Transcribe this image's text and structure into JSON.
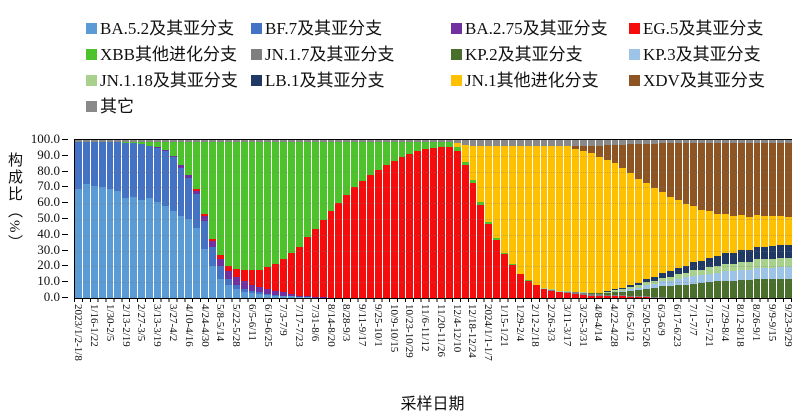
{
  "page": {
    "background": "#ffffff"
  },
  "chart_data": {
    "type": "bar",
    "stacked": true,
    "orientation": "vertical",
    "title": "",
    "xlabel": "采样日期",
    "ylabel": "构成比（%）",
    "unit": "%",
    "ylim": [
      0,
      100
    ],
    "ytick_step": 10,
    "ytick_labels": [
      "100.0",
      "90.0",
      "80.0",
      "70.0",
      "60.0",
      "50.0",
      "40.0",
      "30.0",
      "20.0",
      "10.0",
      "0.0"
    ],
    "grid": "horizontal-dotted",
    "legend_position": "top",
    "n_bars": 91,
    "bars_per_label": 2,
    "x_labels": [
      "2023/1/2-1/8",
      "1/16-1/22",
      "1/30-2/5",
      "2/13-2/19",
      "2/27-3/5",
      "3/13-3/19",
      "3/27-4/2",
      "4/10-4/16",
      "4/24-4/30",
      "5/8-5/14",
      "5/22-5/28",
      "6/5-6/11",
      "6/19-6/25",
      "7/3-7/9",
      "7/17-7/23",
      "7/31-8/6",
      "8/14-8/20",
      "8/28-9/3",
      "9/11-9/17",
      "9/25-10/1",
      "10/9-10/15",
      "10/23-10/29",
      "11/6-11/12",
      "11/20-11/26",
      "12/4-12/10",
      "12/18-12/24",
      "2024/1/1-1/7",
      "1/15-1/21",
      "1/29-2/4",
      "2/12-2/18",
      "2/26-3/3",
      "3/11-3/17",
      "3/25-3/31",
      "4/8-4/14",
      "4/22-4/28",
      "5/6-5/12",
      "5/20-5/26",
      "6/3-6/9",
      "6/17-6/23",
      "7/1-7/7",
      "7/15-7/21",
      "7/29-8/4",
      "8/12-8/18",
      "8/26-9/1",
      "9/9-9/15",
      "9/23-9/29"
    ],
    "series": [
      {
        "name": "BA.5.2及其亚分支",
        "color": "#5B9BD5",
        "values": [
          69,
          72,
          71,
          70,
          69,
          68,
          63,
          64,
          62,
          63,
          61,
          58,
          55,
          52,
          50,
          44,
          31,
          20,
          12,
          8,
          6,
          4,
          3,
          2.5,
          2,
          1.5,
          1,
          1,
          0.5,
          0.5,
          0,
          0,
          0,
          0,
          0,
          0,
          0,
          0,
          0,
          0,
          0,
          0,
          0,
          0,
          0,
          0,
          0,
          0,
          0,
          0,
          0,
          0,
          0,
          0,
          0,
          0,
          0,
          0,
          0,
          0,
          0,
          0,
          0,
          0,
          0,
          0,
          0,
          0,
          0,
          0,
          0,
          0,
          0,
          0,
          0,
          0,
          0,
          0,
          0,
          0,
          0,
          0,
          0,
          0,
          0,
          0,
          0,
          0,
          0,
          0,
          0
        ]
      },
      {
        "name": "BF.7及其亚分支",
        "color": "#4472C4",
        "values": [
          30,
          27,
          28,
          29,
          30,
          31,
          35,
          34,
          35.5,
          33.5,
          34,
          35,
          34,
          30,
          26,
          22,
          18,
          12,
          8,
          4,
          2.5,
          2,
          1.5,
          1,
          0.5,
          0.5,
          0.5,
          0,
          0,
          0,
          0,
          0,
          0,
          0,
          0,
          0,
          0,
          0,
          0,
          0,
          0,
          0,
          0,
          0,
          0,
          0,
          0,
          0,
          0,
          0,
          0,
          0,
          0,
          0,
          0,
          0,
          0,
          0,
          0,
          0,
          0,
          0,
          0,
          0,
          0,
          0,
          0,
          0,
          0,
          0,
          0,
          0,
          0,
          0,
          0,
          0,
          0,
          0,
          0,
          0,
          0,
          0,
          0,
          0,
          0,
          0,
          0,
          0,
          0,
          0,
          0
        ]
      },
      {
        "name": "BA.2.75及其亚分支",
        "color": "#7030A0",
        "values": [
          0,
          0,
          0,
          0,
          0,
          0,
          0,
          0,
          0,
          0,
          0.5,
          1,
          1,
          2,
          2,
          2,
          3,
          4,
          5,
          5,
          5,
          4.5,
          4,
          3.5,
          3,
          2.5,
          2,
          1.5,
          1,
          1,
          0.5,
          0.5,
          0,
          0,
          0,
          0,
          0,
          0,
          0,
          0,
          0,
          0,
          0,
          0,
          0,
          0,
          0,
          0,
          0,
          0,
          0,
          0,
          0,
          0,
          0,
          0,
          0,
          0,
          0,
          0,
          0,
          0,
          0,
          0,
          0,
          0,
          0,
          0,
          0,
          0,
          0,
          0,
          0,
          0,
          0,
          0,
          0,
          0,
          0,
          0,
          0,
          0,
          0,
          0,
          0,
          0,
          0,
          0,
          0,
          0,
          0
        ]
      },
      {
        "name": "EG.5及其亚分支",
        "color": "#F50D0D",
        "values": [
          0,
          0,
          0,
          0,
          0,
          0,
          0,
          0,
          0,
          0,
          0,
          0,
          0,
          0,
          0,
          1,
          1,
          1.5,
          2,
          3,
          5,
          7,
          9,
          11,
          14,
          17,
          21,
          26,
          31,
          37,
          43,
          49,
          55,
          60,
          65,
          70,
          74,
          78,
          81,
          84,
          87,
          89,
          91,
          93,
          94,
          95,
          95.5,
          95.5,
          93,
          84,
          73,
          59,
          47,
          37,
          28,
          21,
          15,
          11,
          8,
          6,
          4.5,
          3.5,
          3,
          2.5,
          2,
          1.5,
          1.5,
          1,
          1,
          1,
          0.5,
          0.5,
          0.5,
          0,
          0,
          0,
          0,
          0,
          0,
          0,
          0,
          0,
          0,
          0,
          0,
          0,
          0,
          0,
          0,
          0,
          0
        ]
      },
      {
        "name": "XBB其他进化分支",
        "color": "#4DC32B",
        "values": [
          0,
          0,
          0,
          0,
          0,
          0,
          1,
          1,
          1.5,
          2.5,
          3.5,
          5,
          9,
          15,
          21,
          30,
          46,
          61.5,
          72,
          79,
          80.5,
          81.5,
          81.5,
          81,
          79.5,
          77.5,
          74.5,
          70.5,
          66.5,
          60.5,
          55.5,
          49.5,
          44,
          39,
          34,
          29,
          25,
          21,
          18,
          15,
          12,
          10,
          8,
          6,
          5,
          4,
          3.5,
          3,
          2.5,
          2,
          1.5,
          1.5,
          1,
          1,
          0.5,
          0.5,
          0.5,
          0.5,
          0,
          0,
          0,
          0,
          0,
          0,
          0,
          0,
          0,
          0,
          0,
          0,
          0,
          0,
          0,
          0,
          0,
          0,
          0,
          0,
          0,
          0,
          0,
          0,
          0,
          0,
          0,
          0,
          0,
          0,
          0,
          0,
          0
        ]
      },
      {
        "name": "JN.1.7及其亚分支",
        "color": "#7F7F7F",
        "values": [
          0,
          0,
          0,
          0,
          0,
          0,
          0,
          0,
          0,
          0,
          0,
          0,
          0,
          0,
          0,
          0,
          0,
          0,
          0,
          0,
          0,
          0,
          0,
          0,
          0,
          0,
          0,
          0,
          0,
          0,
          0,
          0,
          0,
          0,
          0,
          0,
          0,
          0,
          0,
          0,
          0,
          0,
          0,
          0,
          0,
          0,
          0,
          0,
          0,
          0,
          0,
          0,
          0,
          0,
          0,
          0,
          0,
          0,
          0,
          0,
          0.5,
          0.5,
          1,
          1,
          1,
          1,
          1,
          1,
          1,
          1,
          1,
          0.5,
          0.5,
          0.5,
          0.5,
          0,
          0,
          0,
          0,
          0,
          0,
          0,
          0,
          0,
          0,
          0,
          0,
          0,
          0,
          0,
          0
        ]
      },
      {
        "name": "KP.2及其亚分支",
        "color": "#4A6F2C",
        "values": [
          0,
          0,
          0,
          0,
          0,
          0,
          0,
          0,
          0,
          0,
          0,
          0,
          0,
          0,
          0,
          0,
          0,
          0,
          0,
          0,
          0,
          0,
          0,
          0,
          0,
          0,
          0,
          0,
          0,
          0,
          0,
          0,
          0,
          0,
          0,
          0,
          0,
          0,
          0,
          0,
          0,
          0,
          0,
          0,
          0,
          0,
          0,
          0,
          0,
          0,
          0,
          0,
          0,
          0,
          0,
          0,
          0,
          0,
          0,
          0,
          0,
          0,
          0,
          0,
          0,
          0.5,
          0.5,
          1,
          1.5,
          2,
          3,
          4,
          5,
          6,
          7,
          7.5,
          8,
          8.5,
          9,
          9.5,
          10,
          10.5,
          11,
          11,
          11.5,
          11.5,
          12,
          12,
          12,
          12,
          12
        ]
      },
      {
        "name": "KP.3及其亚分支",
        "color": "#9DC3E6",
        "values": [
          0,
          0,
          0,
          0,
          0,
          0,
          0,
          0,
          0,
          0,
          0,
          0,
          0,
          0,
          0,
          0,
          0,
          0,
          0,
          0,
          0,
          0,
          0,
          0,
          0,
          0,
          0,
          0,
          0,
          0,
          0,
          0,
          0,
          0,
          0,
          0,
          0,
          0,
          0,
          0,
          0,
          0,
          0,
          0,
          0,
          0,
          0,
          0,
          0,
          0,
          0,
          0,
          0,
          0,
          0,
          0,
          0,
          0,
          0,
          0,
          0,
          0,
          0,
          0,
          0,
          0,
          0,
          0,
          0.5,
          0.5,
          1,
          1.5,
          2,
          2.5,
          3,
          3.5,
          4,
          4.5,
          5,
          5,
          5.5,
          5.5,
          6,
          6,
          6.5,
          6.5,
          7,
          7,
          7,
          7.5,
          7.5
        ]
      },
      {
        "name": "JN.1.18及其亚分支",
        "color": "#A9D18E",
        "values": [
          0,
          0,
          0,
          0,
          0,
          0,
          0,
          0,
          0,
          0,
          0,
          0,
          0,
          0,
          0,
          0,
          0,
          0,
          0,
          0,
          0,
          0,
          0,
          0,
          0,
          0,
          0,
          0,
          0,
          0,
          0,
          0,
          0,
          0,
          0,
          0,
          0,
          0,
          0,
          0,
          0,
          0,
          0,
          0,
          0,
          0,
          0,
          0,
          0,
          0,
          0,
          0,
          0,
          0,
          0,
          0,
          0,
          0,
          0.5,
          0.5,
          0.5,
          0.5,
          0.5,
          0.5,
          0.5,
          0.5,
          0.5,
          1,
          1,
          1,
          1.5,
          1.5,
          2,
          2,
          2.5,
          2.5,
          3,
          3,
          3.5,
          3.5,
          4,
          4,
          4.5,
          4.5,
          5,
          5,
          5.5,
          5.5,
          6,
          6,
          6
        ]
      },
      {
        "name": "LB.1及其亚分支",
        "color": "#1F3864",
        "values": [
          0,
          0,
          0,
          0,
          0,
          0,
          0,
          0,
          0,
          0,
          0,
          0,
          0,
          0,
          0,
          0,
          0,
          0,
          0,
          0,
          0,
          0,
          0,
          0,
          0,
          0,
          0,
          0,
          0,
          0,
          0,
          0,
          0,
          0,
          0,
          0,
          0,
          0,
          0,
          0,
          0,
          0,
          0,
          0,
          0,
          0,
          0,
          0,
          0,
          0,
          0,
          0,
          0,
          0,
          0,
          0,
          0,
          0,
          0,
          0,
          0,
          0,
          0,
          0,
          0,
          0,
          0,
          0.5,
          0.5,
          1,
          1,
          1.5,
          2,
          2.5,
          3,
          3.5,
          4,
          4.5,
          5,
          5.5,
          6,
          6.5,
          7,
          7,
          7.5,
          7.5,
          8,
          8,
          8,
          8,
          8
        ]
      },
      {
        "name": "JN.1其他进化分支",
        "color": "#FFC000",
        "values": [
          0,
          0,
          0,
          0,
          0,
          0,
          0,
          0,
          0,
          0,
          0,
          0,
          0,
          0,
          0,
          0,
          0,
          0,
          0,
          0,
          0,
          0,
          0,
          0,
          0,
          0,
          0,
          0,
          0,
          0,
          0,
          0,
          0,
          0,
          0,
          0,
          0,
          0,
          0,
          0,
          0,
          0,
          0,
          0,
          0,
          0,
          0,
          0,
          2.5,
          11,
          22,
          35.5,
          48,
          58,
          67.5,
          74.5,
          80.5,
          84.5,
          87.5,
          89.5,
          90.5,
          91.5,
          91.5,
          90.5,
          89.5,
          88,
          86,
          83,
          80,
          75.5,
          71,
          66,
          61,
          56,
          51,
          47,
          43,
          39,
          35.5,
          32.5,
          29.5,
          27,
          25,
          23.5,
          22,
          21,
          20,
          19.5,
          19,
          18.5,
          18
        ]
      },
      {
        "name": "XDV及其亚分支",
        "color": "#8E5524",
        "values": [
          0,
          0,
          0,
          0,
          0,
          0,
          0,
          0,
          0,
          0,
          0,
          0,
          0,
          0,
          0,
          0,
          0,
          0,
          0,
          0,
          0,
          0,
          0,
          0,
          0,
          0,
          0,
          0,
          0,
          0,
          0,
          0,
          0,
          0,
          0,
          0,
          0,
          0,
          0,
          0,
          0,
          0,
          0,
          0,
          0,
          0,
          0,
          0,
          0,
          0,
          0,
          0,
          0,
          0,
          0,
          0,
          0,
          0,
          0,
          0,
          0,
          0,
          0,
          1.5,
          3,
          4.5,
          7,
          9.5,
          11.5,
          15,
          18.5,
          22,
          24.5,
          28,
          31,
          34,
          36,
          38.5,
          40,
          42,
          43,
          44.5,
          44.5,
          46,
          45.5,
          46.5,
          45.5,
          46,
          46,
          46,
          46.5
        ]
      },
      {
        "name": "其它",
        "color": "#898989",
        "values": [
          1,
          1,
          1,
          1,
          1,
          1,
          1,
          1,
          1,
          1,
          1,
          1,
          1,
          1,
          1,
          1,
          1,
          1,
          1,
          1,
          1,
          1,
          1,
          1,
          1,
          1,
          1,
          1,
          1,
          1,
          1,
          1,
          1,
          1,
          1,
          1,
          1,
          1,
          1,
          1,
          1,
          1,
          1,
          1,
          1,
          1,
          1,
          1.5,
          2,
          3,
          3.5,
          4,
          4,
          4,
          4,
          4,
          4,
          4,
          4,
          4,
          4,
          4,
          4,
          4,
          4,
          4,
          3.5,
          3,
          3,
          3,
          2.5,
          2.5,
          2.5,
          2.5,
          2,
          2,
          2,
          2,
          2,
          2,
          2,
          2,
          2,
          2,
          2,
          2,
          2,
          2,
          2,
          2,
          2
        ]
      }
    ]
  }
}
